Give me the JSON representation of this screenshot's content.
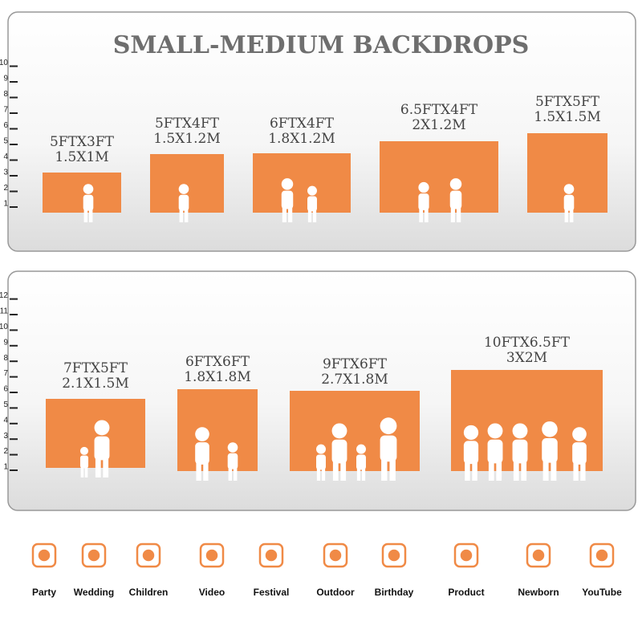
{
  "title": "SMALL-MEDIUM BACKDROPS",
  "panels": [
    {
      "ruler": [
        1,
        2,
        3,
        4,
        5,
        6,
        7,
        8,
        9,
        10
      ],
      "backdrops": [
        {
          "size": "5FTX3FT",
          "metric": "1.5X1M"
        },
        {
          "size": "5FTX4FT",
          "metric": "1.5X1.2M"
        },
        {
          "size": "6FTX4FT",
          "metric": "1.8X1.2M"
        },
        {
          "size": "6.5FTX4FT",
          "metric": "2X1.2M"
        },
        {
          "size": "5FTX5FT",
          "metric": "1.5X1.5M"
        }
      ]
    },
    {
      "ruler": [
        1,
        2,
        3,
        4,
        5,
        6,
        7,
        8,
        9,
        10,
        11,
        12
      ],
      "backdrops": [
        {
          "size": "7FTX5FT",
          "metric": "2.1X1.5M"
        },
        {
          "size": "6FTX6FT",
          "metric": "1.8X1.8M"
        },
        {
          "size": "9FTX6FT",
          "metric": "2.7X1.8M"
        },
        {
          "size": "10FTX6.5FT",
          "metric": "3X2M"
        }
      ]
    }
  ],
  "icons": [
    "Party",
    "Wedding",
    "Children",
    "Video",
    "Festival",
    "Outdoor",
    "Birthday",
    "Product",
    "Newborn",
    "YouTube"
  ]
}
